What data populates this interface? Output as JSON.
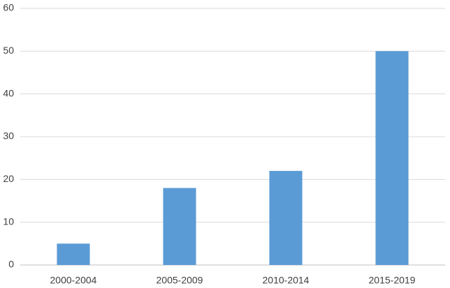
{
  "chart_data": {
    "type": "bar",
    "categories": [
      "2000-2004",
      "2005-2009",
      "2010-2014",
      "2015-2019"
    ],
    "values": [
      5,
      18,
      22,
      50
    ],
    "color": "#5b9bd5",
    "ylim": [
      0,
      60
    ],
    "yticks": [
      0,
      10,
      20,
      30,
      40,
      50,
      60
    ],
    "grid": true
  }
}
